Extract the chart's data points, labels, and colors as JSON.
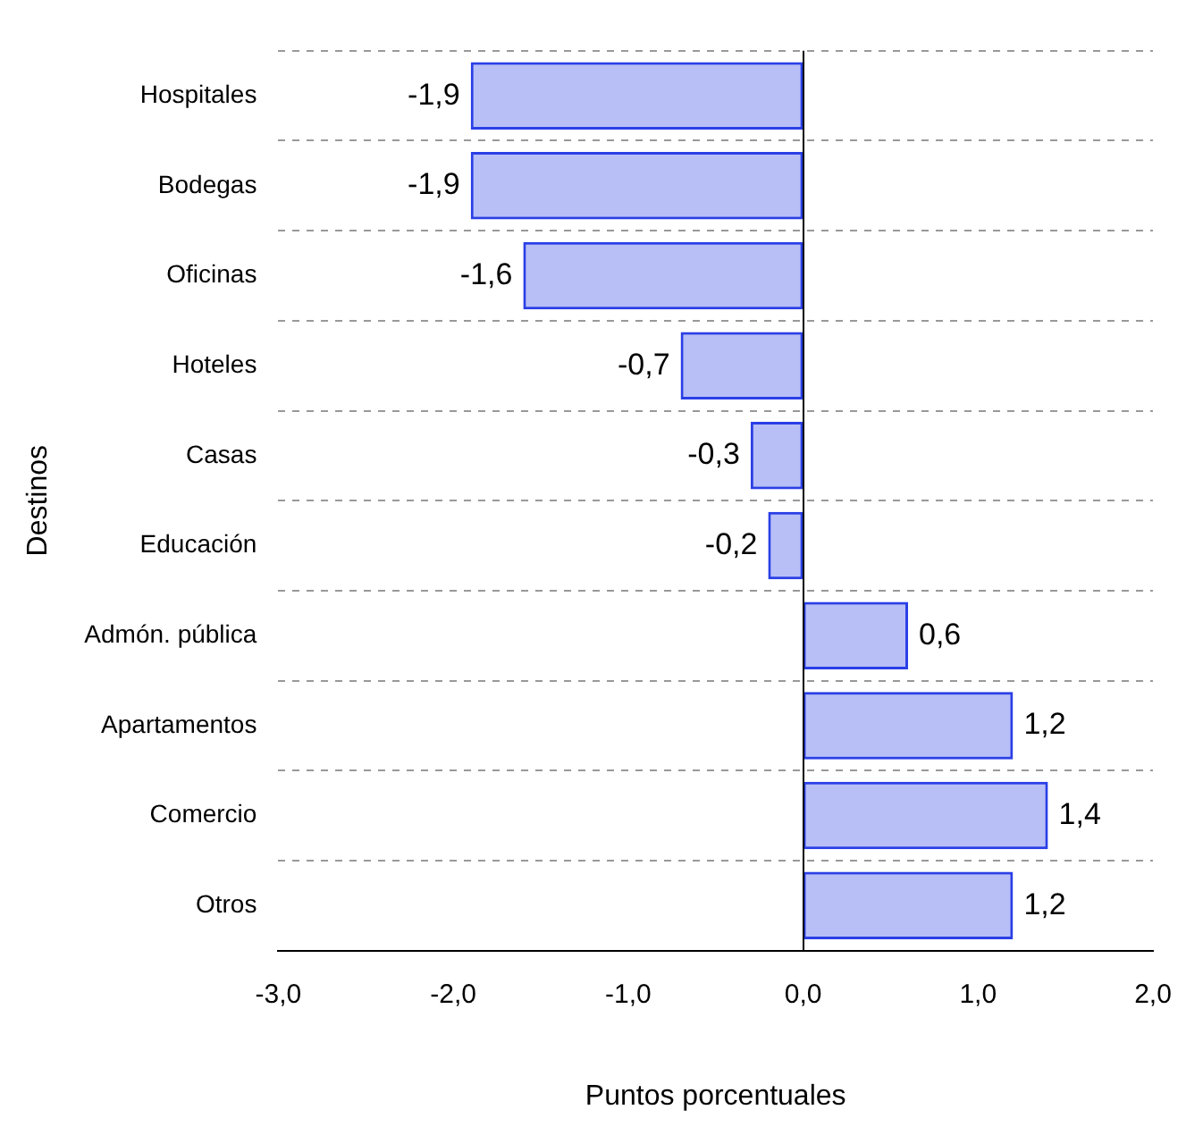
{
  "chart_data": {
    "type": "bar",
    "orientation": "horizontal",
    "xlabel": "Puntos porcentuales",
    "ylabel": "Destinos",
    "categories": [
      "Hospitales",
      "Bodegas",
      "Oficinas",
      "Hoteles",
      "Casas",
      "Educación",
      "Admón. pública",
      "Apartamentos",
      "Comercio",
      "Otros"
    ],
    "values": [
      -1.9,
      -1.9,
      -1.6,
      -0.7,
      -0.3,
      -0.2,
      0.6,
      1.2,
      1.4,
      1.2
    ],
    "value_labels": [
      "-1,9",
      "-1,9",
      "-1,6",
      "-0,7",
      "-0,3",
      "-0,2",
      "0,6",
      "1,2",
      "1,4",
      "1,2"
    ],
    "color": "#2a3fe6",
    "xlim": [
      -3,
      2
    ],
    "xticks": [
      {
        "value": -3,
        "label": "-3,0"
      },
      {
        "value": -2,
        "label": "-2,0"
      },
      {
        "value": -1,
        "label": "-1,0"
      },
      {
        "value": 0,
        "label": "0,0"
      },
      {
        "value": 1,
        "label": "1,0"
      },
      {
        "value": 2,
        "label": "2,0"
      }
    ],
    "grid": "y",
    "legend": false
  }
}
